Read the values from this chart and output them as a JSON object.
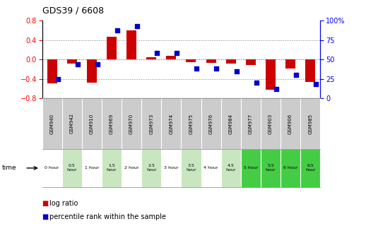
{
  "title": "GDS39 / 6608",
  "categories": [
    "GSM940",
    "GSM942",
    "GSM910",
    "GSM969",
    "GSM970",
    "GSM973",
    "GSM974",
    "GSM975",
    "GSM976",
    "GSM984",
    "GSM977",
    "GSM903",
    "GSM906",
    "GSM985"
  ],
  "time_labels": [
    "0 hour",
    "0.5\nhour",
    "1 hour",
    "1.5\nhour",
    "2 hour",
    "2.5\nhour",
    "3 hour",
    "3.5\nhour",
    "4 hour",
    "4.5\nhour",
    "5 hour",
    "5.5\nhour",
    "6 hour",
    "6.5\nhour"
  ],
  "log_ratio": [
    -0.5,
    -0.08,
    -0.48,
    0.47,
    0.6,
    0.04,
    0.07,
    -0.05,
    -0.07,
    -0.08,
    -0.12,
    -0.62,
    -0.18,
    -0.47
  ],
  "percentile": [
    25,
    44,
    44,
    88,
    93,
    58,
    58,
    38,
    38,
    35,
    20,
    12,
    30,
    18
  ],
  "bar_color": "#cc0000",
  "dot_color": "#0000cc",
  "ylim_left": [
    -0.8,
    0.8
  ],
  "ylim_right": [
    0,
    100
  ],
  "yticks_left": [
    -0.8,
    -0.4,
    0.0,
    0.4,
    0.8
  ],
  "ytick_right_labels": [
    "0",
    "25",
    "50",
    "75",
    "100%"
  ],
  "yticks_right": [
    0,
    25,
    50,
    75,
    100
  ],
  "bg_color": "#ffffff",
  "time_row_colors": [
    "#ffffff",
    "#c8e6c0",
    "#ffffff",
    "#c8e6c0",
    "#ffffff",
    "#c8e6c0",
    "#ffffff",
    "#c8e6c0",
    "#ffffff",
    "#c8e6c0",
    "#44cc44",
    "#44cc44",
    "#44cc44",
    "#44cc44"
  ],
  "header_row_color": "#cccccc",
  "legend_bar_label": "log ratio",
  "legend_dot_label": "percentile rank within the sample"
}
